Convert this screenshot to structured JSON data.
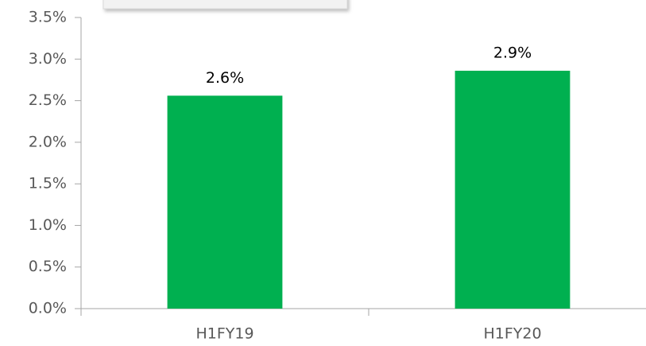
{
  "chart_data": {
    "type": "bar",
    "categories": [
      "H1FY19",
      "H1FY20"
    ],
    "values": [
      2.56,
      2.86
    ],
    "value_labels": [
      "2.6%",
      "2.9%"
    ],
    "color": "#00b050",
    "ylim": [
      0,
      3.5
    ],
    "yticks": [
      {
        "value": 0,
        "label": "0.0%"
      },
      {
        "value": 0.5,
        "label": "0.5%"
      },
      {
        "value": 1,
        "label": "1.0%"
      },
      {
        "value": 1.5,
        "label": "1.5%"
      },
      {
        "value": 2,
        "label": "2.0%"
      },
      {
        "value": 2.5,
        "label": "2.5%"
      },
      {
        "value": 3,
        "label": "3.0%"
      },
      {
        "value": 3.5,
        "label": "3.5%"
      }
    ],
    "grid": false
  }
}
